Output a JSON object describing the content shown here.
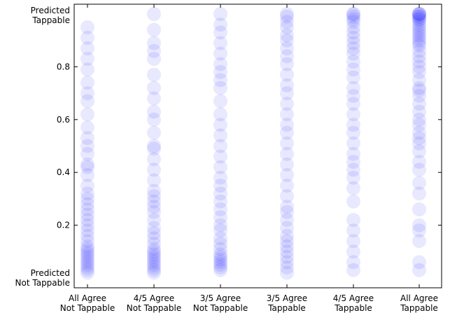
{
  "chart_data": {
    "type": "scatter",
    "title": "",
    "xlabel": "",
    "ylabel": "",
    "ylim": [
      0,
      1
    ],
    "grid": false,
    "yticks": [
      0.2,
      0.4,
      0.6,
      0.8
    ],
    "ytick_labels": [
      "0.2",
      "0.4",
      "0.6",
      "0.8"
    ],
    "y_end_labels": {
      "top": [
        "Predicted",
        "Tappable"
      ],
      "bottom": [
        "Predicted",
        "Not Tappable"
      ]
    },
    "categories": [
      [
        "All Agree",
        "Not Tappable"
      ],
      [
        "4/5 Agree",
        "Not Tappable"
      ],
      [
        "3/5 Agree",
        "Not Tappable"
      ],
      [
        "3/5 Agree",
        "Tappable"
      ],
      [
        "4/5 Agree",
        "Tappable"
      ],
      [
        "All Agree",
        "Tappable"
      ]
    ],
    "point_color": "#0000ff",
    "series": [
      {
        "values": [
          0.95,
          0.91,
          0.87,
          0.83,
          0.79,
          0.74,
          0.7,
          0.67,
          0.62,
          0.57,
          0.53,
          0.5,
          0.47,
          0.43,
          0.42,
          0.39,
          0.35,
          0.32,
          0.3,
          0.28,
          0.26,
          0.24,
          0.22,
          0.2,
          0.18,
          0.16,
          0.14,
          0.12,
          0.11,
          0.1,
          0.09,
          0.08,
          0.07,
          0.06,
          0.05,
          0.04,
          0.03,
          0.02
        ]
      },
      {
        "values": [
          1.0,
          0.94,
          0.89,
          0.86,
          0.83,
          0.77,
          0.72,
          0.68,
          0.63,
          0.6,
          0.55,
          0.5,
          0.49,
          0.45,
          0.41,
          0.37,
          0.33,
          0.31,
          0.29,
          0.27,
          0.25,
          0.22,
          0.19,
          0.17,
          0.15,
          0.13,
          0.11,
          0.1,
          0.09,
          0.08,
          0.07,
          0.06,
          0.05,
          0.04,
          0.03,
          0.02
        ]
      },
      {
        "values": [
          1.0,
          0.96,
          0.93,
          0.89,
          0.85,
          0.81,
          0.78,
          0.75,
          0.72,
          0.67,
          0.62,
          0.58,
          0.54,
          0.5,
          0.46,
          0.42,
          0.38,
          0.35,
          0.32,
          0.29,
          0.26,
          0.23,
          0.2,
          0.18,
          0.15,
          0.13,
          0.11,
          0.09,
          0.08,
          0.07,
          0.06,
          0.05,
          0.04,
          0.03
        ]
      },
      {
        "values": [
          1.0,
          0.99,
          0.97,
          0.95,
          0.92,
          0.9,
          0.87,
          0.84,
          0.81,
          0.77,
          0.73,
          0.7,
          0.66,
          0.62,
          0.58,
          0.55,
          0.51,
          0.47,
          0.43,
          0.39,
          0.35,
          0.31,
          0.27,
          0.25,
          0.22,
          0.19,
          0.16,
          0.14,
          0.12,
          0.1,
          0.08,
          0.06,
          0.04,
          0.02
        ]
      },
      {
        "values": [
          1.0,
          1.0,
          0.99,
          0.98,
          0.97,
          0.95,
          0.93,
          0.91,
          0.89,
          0.87,
          0.85,
          0.82,
          0.79,
          0.76,
          0.72,
          0.69,
          0.66,
          0.62,
          0.58,
          0.55,
          0.51,
          0.47,
          0.44,
          0.41,
          0.38,
          0.34,
          0.29,
          0.22,
          0.18,
          0.14,
          0.1,
          0.06,
          0.03
        ]
      },
      {
        "values": [
          1.0,
          1.0,
          1.0,
          1.0,
          0.99,
          0.99,
          0.98,
          0.98,
          0.97,
          0.96,
          0.95,
          0.94,
          0.93,
          0.92,
          0.91,
          0.9,
          0.89,
          0.88,
          0.86,
          0.84,
          0.82,
          0.8,
          0.78,
          0.75,
          0.72,
          0.71,
          0.69,
          0.66,
          0.63,
          0.6,
          0.58,
          0.55,
          0.53,
          0.51,
          0.48,
          0.44,
          0.41,
          0.36,
          0.32,
          0.26,
          0.2,
          0.18,
          0.14,
          0.06,
          0.03
        ]
      }
    ]
  }
}
